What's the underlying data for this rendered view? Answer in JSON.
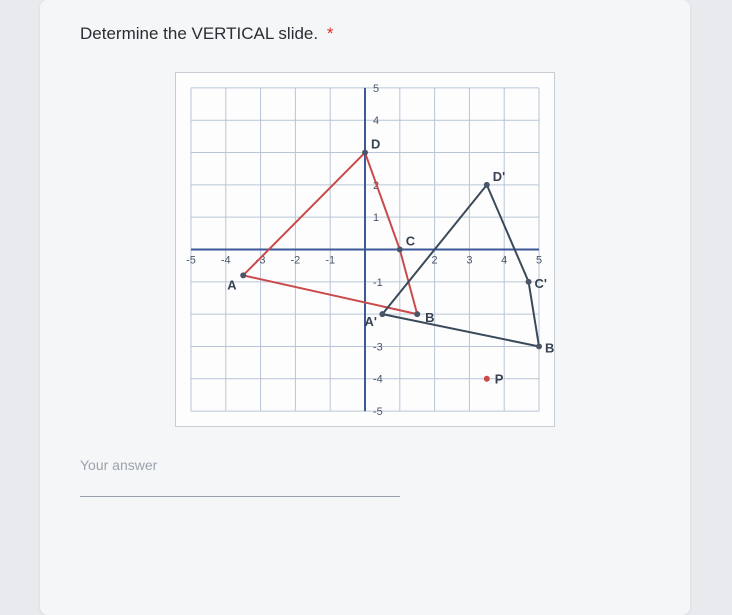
{
  "question": {
    "text": "Determine the VERTICAL slide.",
    "required": true
  },
  "answer": {
    "label": "Your answer",
    "value": ""
  },
  "chart": {
    "type": "scatter",
    "xlim": [
      -5,
      5
    ],
    "ylim": [
      -5,
      5
    ],
    "tick_step": 1,
    "grid_color": "#b8c5d6",
    "axis_color": "#3b5998",
    "background_color": "#fdfdfe",
    "border_color": "#c8cdd4",
    "shape1_color": "#c94a4a",
    "shape2_color": "#3a4a5a",
    "point_fill": "#4a5568",
    "line_width": 2,
    "point_radius": 3,
    "x_ticks": [
      {
        "v": -5,
        "label": "-5"
      },
      {
        "v": -4,
        "label": "-4"
      },
      {
        "v": -3,
        "label": "-3"
      },
      {
        "v": -2,
        "label": "-2"
      },
      {
        "v": -1,
        "label": "-1"
      },
      {
        "v": 1,
        "label": ""
      },
      {
        "v": 2,
        "label": "2"
      },
      {
        "v": 3,
        "label": "3"
      },
      {
        "v": 4,
        "label": "4"
      },
      {
        "v": 5,
        "label": "5"
      }
    ],
    "y_ticks": [
      {
        "v": -5,
        "label": "-5"
      },
      {
        "v": -4,
        "label": "-4"
      },
      {
        "v": -3,
        "label": "-3"
      },
      {
        "v": -2,
        "label": ""
      },
      {
        "v": -1,
        "label": "-1"
      },
      {
        "v": 1,
        "label": "1"
      },
      {
        "v": 2,
        "label": "2"
      },
      {
        "v": 3,
        "label": ""
      },
      {
        "v": 4,
        "label": "4"
      },
      {
        "v": 5,
        "label": "5"
      }
    ],
    "shape1": {
      "points": {
        "A": {
          "x": -3.5,
          "y": -0.8,
          "label": "A"
        },
        "B": {
          "x": 1.5,
          "y": -2,
          "label": "B"
        },
        "C": {
          "x": 1,
          "y": 0,
          "label": "C"
        },
        "D": {
          "x": 0,
          "y": 3,
          "label": "D"
        }
      }
    },
    "shape2": {
      "points": {
        "A2": {
          "x": 0.5,
          "y": -2,
          "label": "A'"
        },
        "B2": {
          "x": 5,
          "y": -3,
          "label": "B'"
        },
        "C2": {
          "x": 4.7,
          "y": -1,
          "label": "C'"
        },
        "D2": {
          "x": 3.5,
          "y": 2,
          "label": "D'"
        }
      }
    },
    "extra_points": {
      "P": {
        "x": 3.5,
        "y": -4,
        "label": "P"
      }
    }
  }
}
